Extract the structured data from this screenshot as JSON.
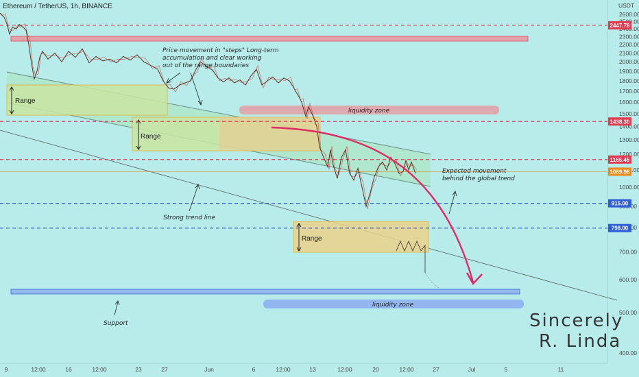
{
  "header": {
    "title": "Ethereum / TetherUS, 1h, BINANCE"
  },
  "chart_data": {
    "type": "line",
    "currency_label": "USDT",
    "y_ticks": [
      2600,
      2500,
      2400,
      2300,
      2200,
      2100,
      2000,
      1900,
      1800,
      1700,
      1600,
      1500,
      1400,
      1300,
      1200,
      1100,
      1000,
      900,
      800,
      700,
      600,
      500,
      400
    ],
    "x_tick_labels": [
      "9",
      "12:00",
      "16",
      "12:00",
      "23",
      "27",
      "Jun",
      "6",
      "12:00",
      "13",
      "12:00",
      "20",
      "12:00",
      "27",
      "Jul",
      "5",
      "11"
    ],
    "price_levels": [
      {
        "value": 2447.78,
        "label": "2447.78",
        "color": "#e53950"
      },
      {
        "value": 1438.3,
        "label": "1438.30",
        "color": "#e53950"
      },
      {
        "value": 1165.45,
        "label": "1165.45",
        "color": "#e53950"
      },
      {
        "value": 1089.98,
        "label": "1089.98",
        "color": "#f0891c"
      },
      {
        "value": 915.0,
        "label": "915.00",
        "color": "#2f5fd6"
      },
      {
        "value": 798.0,
        "label": "798.00",
        "color": "#2f5fd6"
      }
    ],
    "price_path": [
      [
        0,
        2620
      ],
      [
        6,
        2560
      ],
      [
        10,
        2470
      ],
      [
        14,
        2330
      ],
      [
        18,
        2420
      ],
      [
        24,
        2400
      ],
      [
        28,
        2460
      ],
      [
        34,
        2420
      ],
      [
        38,
        2380
      ],
      [
        42,
        2200
      ],
      [
        46,
        1980
      ],
      [
        50,
        1820
      ],
      [
        54,
        1900
      ],
      [
        58,
        2050
      ],
      [
        62,
        2120
      ],
      [
        70,
        2030
      ],
      [
        80,
        2100
      ],
      [
        90,
        2000
      ],
      [
        100,
        2120
      ],
      [
        110,
        2050
      ],
      [
        120,
        2150
      ],
      [
        130,
        1990
      ],
      [
        140,
        2060
      ],
      [
        150,
        2010
      ],
      [
        160,
        2030
      ],
      [
        170,
        1990
      ],
      [
        180,
        2060
      ],
      [
        190,
        2020
      ],
      [
        200,
        2080
      ],
      [
        210,
        2000
      ],
      [
        220,
        1960
      ],
      [
        230,
        1920
      ],
      [
        238,
        1800
      ],
      [
        246,
        1730
      ],
      [
        254,
        1720
      ],
      [
        262,
        1760
      ],
      [
        270,
        1780
      ],
      [
        278,
        1800
      ],
      [
        286,
        1920
      ],
      [
        292,
        2000
      ],
      [
        300,
        1960
      ],
      [
        310,
        1910
      ],
      [
        318,
        1830
      ],
      [
        326,
        1790
      ],
      [
        334,
        1830
      ],
      [
        342,
        1780
      ],
      [
        350,
        1810
      ],
      [
        358,
        1760
      ],
      [
        366,
        1850
      ],
      [
        374,
        1920
      ],
      [
        382,
        1760
      ],
      [
        390,
        1800
      ],
      [
        398,
        1840
      ],
      [
        406,
        1780
      ],
      [
        414,
        1830
      ],
      [
        422,
        1800
      ],
      [
        428,
        1740
      ],
      [
        432,
        1690
      ],
      [
        436,
        1650
      ],
      [
        440,
        1600
      ],
      [
        446,
        1480
      ],
      [
        450,
        1560
      ],
      [
        456,
        1490
      ],
      [
        462,
        1400
      ],
      [
        466,
        1250
      ],
      [
        472,
        1180
      ],
      [
        478,
        1120
      ],
      [
        482,
        1230
      ],
      [
        486,
        1130
      ],
      [
        492,
        1050
      ],
      [
        498,
        1180
      ],
      [
        504,
        1230
      ],
      [
        510,
        1080
      ],
      [
        516,
        1040
      ],
      [
        522,
        1110
      ],
      [
        528,
        1000
      ],
      [
        534,
        900
      ],
      [
        540,
        970
      ],
      [
        546,
        1060
      ],
      [
        552,
        1120
      ],
      [
        558,
        1150
      ],
      [
        564,
        1100
      ],
      [
        570,
        1180
      ],
      [
        576,
        1140
      ],
      [
        582,
        1080
      ],
      [
        588,
        1090
      ],
      [
        592,
        1160
      ],
      [
        596,
        1100
      ],
      [
        600,
        1150
      ],
      [
        606,
        1080
      ]
    ],
    "annotations": [
      {
        "text_lines": [
          "Price movement in \"steps\" Long-term",
          "accumulation and clear working",
          "out of the range boundaries"
        ]
      },
      {
        "text": "liquidity zone"
      },
      {
        "text_lines": [
          "Expected movement",
          "behind the global trend"
        ]
      },
      {
        "text": "Strong trend line"
      },
      {
        "text": "Support"
      },
      {
        "text": "liquidity zone"
      }
    ],
    "ranges": [
      {
        "label": "Range"
      },
      {
        "label": "Range"
      },
      {
        "label": "Range"
      }
    ],
    "signature_lines": [
      "Sincerely",
      "R. Linda"
    ]
  }
}
